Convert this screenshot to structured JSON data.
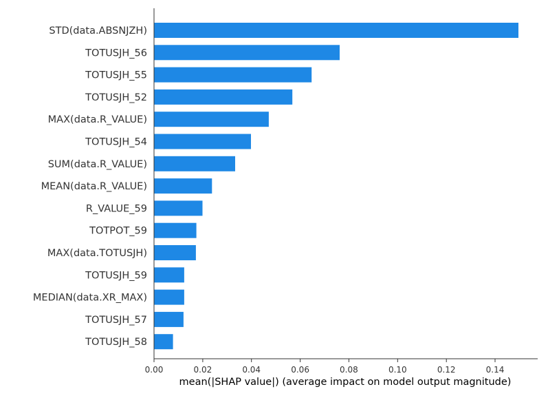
{
  "chart_data": {
    "type": "bar",
    "orientation": "horizontal",
    "categories": [
      "STD(data.ABSNJZH)",
      "TOTUSJH_56",
      "TOTUSJH_55",
      "TOTUSJH_52",
      "MAX(data.R_VALUE)",
      "TOTUSJH_54",
      "SUM(data.R_VALUE)",
      "MEAN(data.R_VALUE)",
      "R_VALUE_59",
      "TOTPOT_59",
      "MAX(data.TOTUSJH)",
      "TOTUSJH_59",
      "MEDIAN(data.XR_MAX)",
      "TOTUSJH_57",
      "TOTUSJH_58"
    ],
    "values": [
      0.1496,
      0.0762,
      0.0647,
      0.0568,
      0.0471,
      0.0398,
      0.0333,
      0.0238,
      0.0199,
      0.0174,
      0.0172,
      0.0124,
      0.0124,
      0.0121,
      0.0078
    ],
    "xlabel": "mean(|SHAP value|) (average impact on model output magnitude)",
    "ylabel": "",
    "title": "",
    "xlim": [
      0.0,
      0.157
    ],
    "xticks": [
      "0.00",
      "0.02",
      "0.04",
      "0.06",
      "0.08",
      "0.10",
      "0.12",
      "0.14"
    ],
    "xtick_values": [
      0.0,
      0.02,
      0.04,
      0.06,
      0.08,
      0.1,
      0.12,
      0.14
    ],
    "bar_color": "#1E88E5",
    "grid": false,
    "legend": "none"
  }
}
